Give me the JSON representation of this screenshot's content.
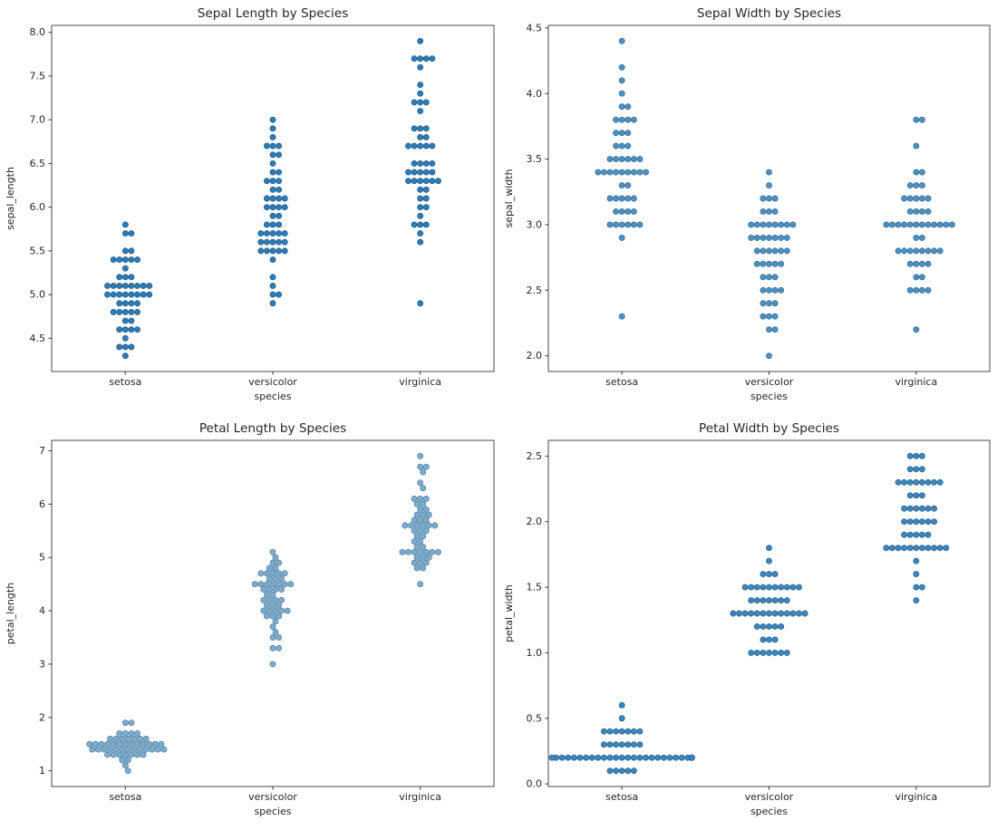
{
  "figure": {
    "background": "#ffffff",
    "dataset": "iris"
  },
  "chart_data": [
    {
      "type": "scatter",
      "subtype": "swarmplot",
      "title": "Sepal Length by Species",
      "xlabel": "species",
      "ylabel": "sepal_length",
      "categories": [
        "setosa",
        "versicolor",
        "virginica"
      ],
      "ylim": [
        4.12,
        8.08
      ],
      "ytick_labels": [
        "4.5",
        "5.0",
        "5.5",
        "6.0",
        "6.5",
        "7.0",
        "7.5",
        "8.0"
      ],
      "grid": false,
      "legend": false,
      "dot_color": "#2b7cb8",
      "series": [
        {
          "name": "setosa",
          "values": [
            5.1,
            4.9,
            4.7,
            4.6,
            5.0,
            5.4,
            4.6,
            5.0,
            4.4,
            4.9,
            5.4,
            4.8,
            4.8,
            4.3,
            5.8,
            5.7,
            5.4,
            5.1,
            5.7,
            5.1,
            5.4,
            5.1,
            4.6,
            5.1,
            4.8,
            5.0,
            5.0,
            5.2,
            5.2,
            4.7,
            4.8,
            5.4,
            5.2,
            5.5,
            4.9,
            5.0,
            5.5,
            4.9,
            4.4,
            5.1,
            5.0,
            4.5,
            4.4,
            5.0,
            5.1,
            4.8,
            5.1,
            4.6,
            5.3,
            5.0
          ]
        },
        {
          "name": "versicolor",
          "values": [
            7.0,
            6.4,
            6.9,
            5.5,
            6.5,
            5.7,
            6.3,
            4.9,
            6.6,
            5.2,
            5.0,
            5.9,
            6.0,
            6.1,
            5.6,
            6.7,
            5.6,
            5.8,
            6.2,
            5.6,
            5.9,
            6.1,
            6.3,
            6.1,
            6.4,
            6.6,
            6.8,
            6.7,
            6.0,
            5.7,
            5.5,
            5.5,
            5.8,
            6.0,
            5.4,
            6.0,
            6.7,
            6.3,
            5.6,
            5.5,
            5.5,
            6.1,
            5.8,
            5.0,
            5.6,
            5.7,
            5.7,
            6.2,
            5.1,
            5.7
          ]
        },
        {
          "name": "virginica",
          "values": [
            6.3,
            5.8,
            7.1,
            6.3,
            6.5,
            7.6,
            4.9,
            7.3,
            6.7,
            7.2,
            6.5,
            6.4,
            6.8,
            5.7,
            5.8,
            6.4,
            6.5,
            7.7,
            7.7,
            6.0,
            6.9,
            5.6,
            7.7,
            6.3,
            6.7,
            7.2,
            6.2,
            6.1,
            6.4,
            7.2,
            7.4,
            7.9,
            6.4,
            6.3,
            6.1,
            7.7,
            6.3,
            6.4,
            6.0,
            6.9,
            6.7,
            6.9,
            5.8,
            6.8,
            6.7,
            6.7,
            6.3,
            6.5,
            6.2,
            5.9
          ]
        }
      ]
    },
    {
      "type": "scatter",
      "subtype": "swarmplot",
      "title": "Sepal Width by Species",
      "xlabel": "species",
      "ylabel": "sepal_width",
      "categories": [
        "setosa",
        "versicolor",
        "virginica"
      ],
      "ylim": [
        1.88,
        4.52
      ],
      "ytick_labels": [
        "2.0",
        "2.5",
        "3.0",
        "3.5",
        "4.0",
        "4.5"
      ],
      "grid": false,
      "legend": false,
      "dot_color": "#4b92c4",
      "series": [
        {
          "name": "setosa",
          "values": [
            3.5,
            3.0,
            3.2,
            3.1,
            3.6,
            3.9,
            3.4,
            3.4,
            2.9,
            3.1,
            3.7,
            3.4,
            3.0,
            3.0,
            4.0,
            4.4,
            3.9,
            3.5,
            3.8,
            3.8,
            3.4,
            3.7,
            3.6,
            3.3,
            3.4,
            3.0,
            3.4,
            3.5,
            3.4,
            3.2,
            3.1,
            3.4,
            4.1,
            4.2,
            3.1,
            3.2,
            3.5,
            3.6,
            3.0,
            3.4,
            3.5,
            2.3,
            3.2,
            3.5,
            3.8,
            3.0,
            3.8,
            3.2,
            3.7,
            3.3
          ]
        },
        {
          "name": "versicolor",
          "values": [
            3.2,
            3.2,
            3.1,
            2.3,
            2.8,
            2.8,
            3.3,
            2.4,
            2.9,
            2.7,
            2.0,
            3.0,
            2.2,
            2.9,
            2.9,
            3.1,
            3.0,
            2.7,
            2.2,
            2.5,
            3.2,
            2.8,
            2.5,
            2.8,
            2.9,
            3.0,
            2.8,
            3.0,
            2.9,
            2.6,
            2.4,
            2.4,
            2.7,
            2.7,
            3.0,
            3.4,
            3.1,
            2.3,
            3.0,
            2.5,
            2.6,
            3.0,
            2.6,
            2.3,
            2.7,
            3.0,
            2.9,
            2.9,
            2.5,
            2.8
          ]
        },
        {
          "name": "virginica",
          "values": [
            3.3,
            2.7,
            3.0,
            2.9,
            3.0,
            3.0,
            2.5,
            2.9,
            2.5,
            3.6,
            3.2,
            2.7,
            3.0,
            2.5,
            2.8,
            3.2,
            3.0,
            3.8,
            2.6,
            2.2,
            3.2,
            2.8,
            2.8,
            2.7,
            3.3,
            3.2,
            2.8,
            3.0,
            2.8,
            3.0,
            2.8,
            3.8,
            2.8,
            2.8,
            2.6,
            3.0,
            3.4,
            3.1,
            3.0,
            3.1,
            3.1,
            3.1,
            2.7,
            3.2,
            3.3,
            3.0,
            2.5,
            3.0,
            3.4,
            3.0
          ]
        }
      ]
    },
    {
      "type": "scatter",
      "subtype": "swarmplot",
      "title": "Petal Length by Species",
      "xlabel": "species",
      "ylabel": "petal_length",
      "categories": [
        "setosa",
        "versicolor",
        "virginica"
      ],
      "ylim": [
        0.705,
        7.195
      ],
      "ytick_labels": [
        "1",
        "2",
        "3",
        "4",
        "5",
        "6",
        "7"
      ],
      "grid": false,
      "legend": false,
      "dot_color": "#79add2",
      "series": [
        {
          "name": "setosa",
          "values": [
            1.4,
            1.4,
            1.3,
            1.5,
            1.4,
            1.7,
            1.4,
            1.5,
            1.4,
            1.5,
            1.5,
            1.6,
            1.4,
            1.1,
            1.2,
            1.5,
            1.3,
            1.4,
            1.7,
            1.5,
            1.7,
            1.5,
            1.0,
            1.7,
            1.9,
            1.6,
            1.6,
            1.5,
            1.4,
            1.6,
            1.6,
            1.5,
            1.5,
            1.4,
            1.5,
            1.2,
            1.3,
            1.4,
            1.3,
            1.5,
            1.3,
            1.3,
            1.3,
            1.6,
            1.9,
            1.4,
            1.6,
            1.4,
            1.5,
            1.4
          ]
        },
        {
          "name": "versicolor",
          "values": [
            4.7,
            4.5,
            4.9,
            4.0,
            4.6,
            4.5,
            4.7,
            3.3,
            4.6,
            3.9,
            3.5,
            4.2,
            4.0,
            4.7,
            3.6,
            4.4,
            4.5,
            4.1,
            4.5,
            3.9,
            4.8,
            4.0,
            4.9,
            4.7,
            4.3,
            4.4,
            4.8,
            5.0,
            4.5,
            3.5,
            3.8,
            3.7,
            3.9,
            5.1,
            4.5,
            4.5,
            4.7,
            4.4,
            4.1,
            4.0,
            4.4,
            4.6,
            4.0,
            3.3,
            4.2,
            4.2,
            4.2,
            4.3,
            3.0,
            4.1
          ]
        },
        {
          "name": "virginica",
          "values": [
            6.0,
            5.1,
            5.9,
            5.6,
            5.8,
            6.6,
            4.5,
            6.3,
            5.8,
            6.1,
            5.1,
            5.3,
            5.5,
            5.0,
            5.1,
            5.3,
            5.5,
            6.7,
            6.9,
            5.0,
            5.7,
            4.9,
            6.7,
            4.9,
            5.7,
            6.0,
            4.8,
            4.9,
            5.6,
            5.8,
            6.1,
            6.4,
            5.6,
            5.1,
            5.6,
            6.1,
            5.6,
            5.5,
            4.8,
            5.4,
            5.6,
            5.1,
            5.1,
            5.9,
            5.7,
            5.2,
            5.0,
            5.2,
            5.4,
            5.1
          ]
        }
      ]
    },
    {
      "type": "scatter",
      "subtype": "swarmplot",
      "title": "Petal Width by Species",
      "xlabel": "species",
      "ylabel": "petal_width",
      "categories": [
        "setosa",
        "versicolor",
        "virginica"
      ],
      "ylim": [
        -0.02,
        2.62
      ],
      "ytick_labels": [
        "0.0",
        "0.5",
        "1.0",
        "1.5",
        "2.0",
        "2.5"
      ],
      "grid": false,
      "legend": false,
      "dot_color": "#3a86bf",
      "series": [
        {
          "name": "setosa",
          "values": [
            0.2,
            0.2,
            0.2,
            0.2,
            0.2,
            0.4,
            0.3,
            0.2,
            0.2,
            0.1,
            0.2,
            0.2,
            0.1,
            0.1,
            0.2,
            0.4,
            0.4,
            0.3,
            0.3,
            0.3,
            0.2,
            0.4,
            0.2,
            0.5,
            0.2,
            0.2,
            0.4,
            0.2,
            0.2,
            0.2,
            0.2,
            0.4,
            0.1,
            0.2,
            0.2,
            0.2,
            0.2,
            0.1,
            0.2,
            0.2,
            0.3,
            0.3,
            0.2,
            0.6,
            0.4,
            0.3,
            0.2,
            0.2,
            0.2,
            0.2
          ]
        },
        {
          "name": "versicolor",
          "values": [
            1.4,
            1.5,
            1.5,
            1.3,
            1.5,
            1.3,
            1.6,
            1.0,
            1.3,
            1.4,
            1.0,
            1.5,
            1.0,
            1.4,
            1.3,
            1.4,
            1.5,
            1.0,
            1.5,
            1.1,
            1.8,
            1.3,
            1.5,
            1.2,
            1.3,
            1.4,
            1.4,
            1.7,
            1.5,
            1.0,
            1.1,
            1.0,
            1.2,
            1.6,
            1.5,
            1.6,
            1.5,
            1.3,
            1.3,
            1.3,
            1.2,
            1.4,
            1.2,
            1.0,
            1.3,
            1.2,
            1.3,
            1.3,
            1.1,
            1.3
          ]
        },
        {
          "name": "virginica",
          "values": [
            2.5,
            1.9,
            2.1,
            1.8,
            2.2,
            2.1,
            1.7,
            1.8,
            1.8,
            2.5,
            2.0,
            1.9,
            2.1,
            2.0,
            2.4,
            2.3,
            1.8,
            2.2,
            2.3,
            1.5,
            2.3,
            2.0,
            2.0,
            1.8,
            2.1,
            1.8,
            1.8,
            1.8,
            2.1,
            1.6,
            1.9,
            2.0,
            2.2,
            1.5,
            1.4,
            2.3,
            2.4,
            1.8,
            1.8,
            2.1,
            2.4,
            2.3,
            1.9,
            2.3,
            2.5,
            2.3,
            1.9,
            2.0,
            2.3,
            1.8
          ]
        }
      ]
    }
  ]
}
